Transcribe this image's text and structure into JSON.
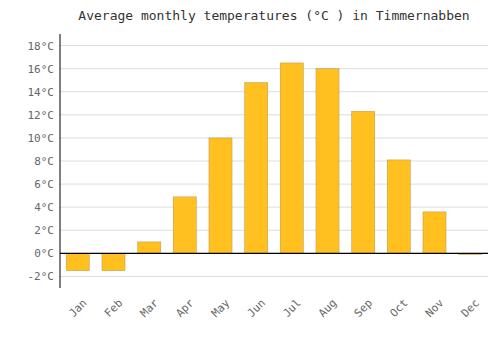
{
  "chart_data": {
    "type": "bar",
    "title": "Average monthly temperatures (°C ) in Timmernabben",
    "categories": [
      "Jan",
      "Feb",
      "Mar",
      "Apr",
      "May",
      "Jun",
      "Jul",
      "Aug",
      "Sep",
      "Oct",
      "Nov",
      "Dec"
    ],
    "values": [
      -1.5,
      -1.5,
      1.0,
      4.9,
      10.0,
      14.8,
      16.5,
      16.0,
      12.3,
      8.1,
      3.6,
      -0.1
    ],
    "color": "#FFC020",
    "ylim": [
      -3,
      19
    ],
    "yticks": [
      {
        "value": -2,
        "label": "-2°C"
      },
      {
        "value": 0,
        "label": "0°C"
      },
      {
        "value": 2,
        "label": "2°C"
      },
      {
        "value": 4,
        "label": "4°C"
      },
      {
        "value": 6,
        "label": "6°C"
      },
      {
        "value": 8,
        "label": "8°C"
      },
      {
        "value": 10,
        "label": "10°C"
      },
      {
        "value": 12,
        "label": "12°C"
      },
      {
        "value": 14,
        "label": "14°C"
      },
      {
        "value": 16,
        "label": "16°C"
      },
      {
        "value": 18,
        "label": "18°C"
      }
    ],
    "grid": true
  }
}
